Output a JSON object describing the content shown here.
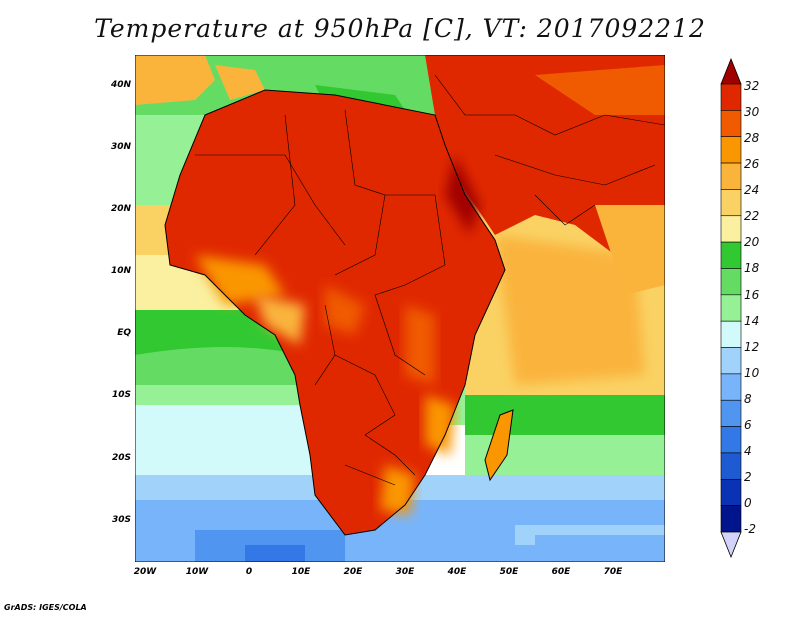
{
  "title": "Temperature at 950hPa [C], VT: 2017092212",
  "credit": "GrADS: IGES/COLA",
  "map": {
    "lat_ticks": [
      "40N",
      "30N",
      "20N",
      "10N",
      "EQ",
      "10S",
      "20S",
      "30S"
    ],
    "lon_ticks": [
      "20W",
      "10W",
      "0",
      "10E",
      "20E",
      "30E",
      "40E",
      "50E",
      "60E",
      "70E"
    ]
  },
  "colorbar": {
    "labels": [
      "32",
      "30",
      "28",
      "26",
      "24",
      "22",
      "20",
      "18",
      "16",
      "14",
      "12",
      "10",
      "8",
      "6",
      "4",
      "2",
      "0",
      "-2"
    ],
    "colors": [
      "#a00000",
      "#e02800",
      "#f05a00",
      "#fa9600",
      "#fab43c",
      "#fad264",
      "#faf0a0",
      "#32c832",
      "#64dc64",
      "#96f096",
      "#d2fafa",
      "#a0d2fa",
      "#78b4fa",
      "#5096f0",
      "#3278e6",
      "#1e5ad2",
      "#0a32b4",
      "#00148c",
      "#d2d2fa"
    ]
  }
}
